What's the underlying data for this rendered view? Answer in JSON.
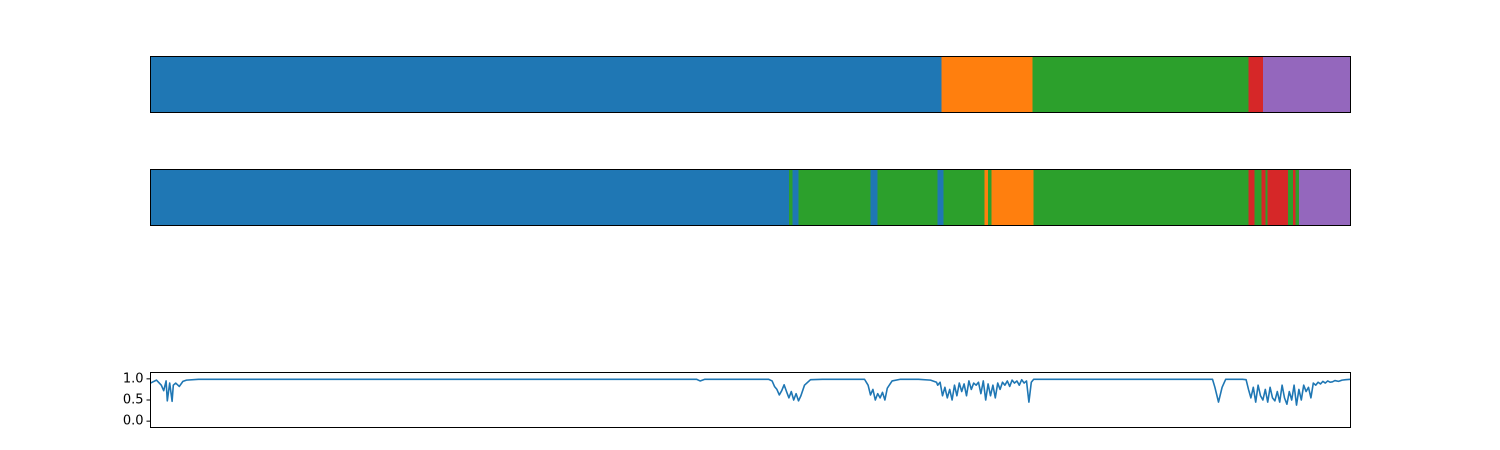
{
  "chart_data": [
    {
      "type": "bar",
      "orientation": "horizontal-stacked-segments",
      "xlim": [
        0,
        1000
      ],
      "axis_ticks": "none",
      "segments": [
        {
          "start": 0,
          "end": 659,
          "color": "#1f77b4"
        },
        {
          "start": 659,
          "end": 735,
          "color": "#ff7f0e"
        },
        {
          "start": 735,
          "end": 915,
          "color": "#2ca02c"
        },
        {
          "start": 915,
          "end": 927,
          "color": "#d62728"
        },
        {
          "start": 927,
          "end": 1000,
          "color": "#9467bd"
        }
      ]
    },
    {
      "type": "bar",
      "orientation": "horizontal-stacked-segments",
      "xlim": [
        0,
        1000
      ],
      "axis_ticks": "none",
      "segments": [
        {
          "start": 0,
          "end": 532,
          "color": "#1f77b4"
        },
        {
          "start": 532,
          "end": 535,
          "color": "#2ca02c"
        },
        {
          "start": 535,
          "end": 540,
          "color": "#1f77b4"
        },
        {
          "start": 540,
          "end": 600,
          "color": "#2ca02c"
        },
        {
          "start": 600,
          "end": 606,
          "color": "#1f77b4"
        },
        {
          "start": 606,
          "end": 656,
          "color": "#2ca02c"
        },
        {
          "start": 656,
          "end": 661,
          "color": "#1f77b4"
        },
        {
          "start": 661,
          "end": 695,
          "color": "#2ca02c"
        },
        {
          "start": 695,
          "end": 698,
          "color": "#ff7f0e"
        },
        {
          "start": 698,
          "end": 701,
          "color": "#2ca02c"
        },
        {
          "start": 701,
          "end": 736,
          "color": "#ff7f0e"
        },
        {
          "start": 736,
          "end": 915,
          "color": "#2ca02c"
        },
        {
          "start": 915,
          "end": 920,
          "color": "#d62728"
        },
        {
          "start": 920,
          "end": 926,
          "color": "#2ca02c"
        },
        {
          "start": 926,
          "end": 929,
          "color": "#d62728"
        },
        {
          "start": 929,
          "end": 931,
          "color": "#2ca02c"
        },
        {
          "start": 931,
          "end": 948,
          "color": "#d62728"
        },
        {
          "start": 948,
          "end": 952,
          "color": "#2ca02c"
        },
        {
          "start": 952,
          "end": 954,
          "color": "#d62728"
        },
        {
          "start": 954,
          "end": 957,
          "color": "#2ca02c"
        },
        {
          "start": 957,
          "end": 1000,
          "color": "#9467bd"
        }
      ]
    },
    {
      "type": "line",
      "xlim": [
        0,
        1000
      ],
      "ylim": [
        -0.15,
        1.15
      ],
      "yticks": [
        0.0,
        0.5,
        1.0
      ],
      "ytick_labels": [
        "0.0",
        "0.5",
        "1.0"
      ],
      "color": "#1f77b4",
      "series": [
        {
          "x": [
            0,
            5,
            9,
            11,
            13,
            14,
            16,
            18,
            19,
            21,
            24,
            27,
            30,
            40,
            80,
            200,
            300,
            400,
            455,
            458,
            462,
            470,
            500,
            515,
            518,
            520,
            522,
            524,
            526,
            528,
            530,
            532,
            534,
            536,
            538,
            540,
            542,
            545,
            550,
            560,
            580,
            595,
            598,
            600,
            602,
            604,
            606,
            608,
            610,
            612,
            614,
            618,
            625,
            640,
            650,
            655,
            656,
            658,
            660,
            662,
            664,
            666,
            668,
            670,
            672,
            674,
            676,
            678,
            680,
            682,
            684,
            686,
            688,
            690,
            692,
            694,
            696,
            698,
            700,
            702,
            704,
            706,
            708,
            710,
            712,
            714,
            716,
            718,
            720,
            722,
            724,
            726,
            728,
            730,
            732,
            734,
            736,
            738,
            742,
            760,
            800,
            850,
            885,
            887,
            890,
            893,
            896,
            900,
            910,
            913,
            915,
            917,
            919,
            921,
            923,
            925,
            927,
            929,
            931,
            933,
            935,
            937,
            939,
            941,
            943,
            945,
            947,
            949,
            951,
            953,
            955,
            957,
            959,
            961,
            963,
            965,
            967,
            969,
            971,
            973,
            975,
            977,
            979,
            981,
            983,
            985,
            987,
            990,
            993,
            996,
            1000
          ],
          "y": [
            0.9,
            0.97,
            0.85,
            0.72,
            0.95,
            0.48,
            0.9,
            0.47,
            0.85,
            0.9,
            0.82,
            0.94,
            0.97,
            0.99,
            0.99,
            0.99,
            0.99,
            0.99,
            0.99,
            0.95,
            0.99,
            0.99,
            0.99,
            0.99,
            0.95,
            0.82,
            0.75,
            0.62,
            0.72,
            0.86,
            0.7,
            0.55,
            0.7,
            0.5,
            0.65,
            0.48,
            0.6,
            0.85,
            0.98,
            0.99,
            0.99,
            0.99,
            0.85,
            0.62,
            0.75,
            0.5,
            0.65,
            0.55,
            0.68,
            0.5,
            0.78,
            0.95,
            0.99,
            0.99,
            0.97,
            0.92,
            0.85,
            0.92,
            0.6,
            0.8,
            0.55,
            0.75,
            0.5,
            0.85,
            0.6,
            0.9,
            0.7,
            0.88,
            0.6,
            0.95,
            0.75,
            0.9,
            0.85,
            0.92,
            0.65,
            0.95,
            0.5,
            0.88,
            0.6,
            0.85,
            0.55,
            0.9,
            0.75,
            0.92,
            0.85,
            0.95,
            0.82,
            0.97,
            0.9,
            0.95,
            0.85,
            0.98,
            0.9,
            0.95,
            0.45,
            0.92,
            0.99,
            0.99,
            0.99,
            0.99,
            0.99,
            0.99,
            0.99,
            0.8,
            0.45,
            0.8,
            0.99,
            0.99,
            0.99,
            0.98,
            0.75,
            0.55,
            0.8,
            0.45,
            0.85,
            0.6,
            0.5,
            0.75,
            0.45,
            0.8,
            0.55,
            0.48,
            0.7,
            0.45,
            0.85,
            0.55,
            0.4,
            0.7,
            0.5,
            0.85,
            0.38,
            0.75,
            0.5,
            0.85,
            0.7,
            0.8,
            0.55,
            0.9,
            0.85,
            0.92,
            0.88,
            0.94,
            0.9,
            0.95,
            0.92,
            0.93,
            0.96,
            0.94,
            0.97,
            0.98,
            0.99
          ]
        }
      ]
    }
  ]
}
